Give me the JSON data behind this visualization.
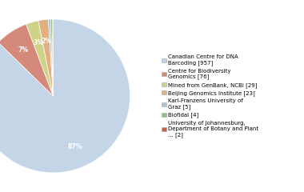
{
  "labels": [
    "Canadian Centre for DNA\nBarcoding [957]",
    "Centre for Biodiversity\nGenomics [76]",
    "Mined from GenBank, NCBI [29]",
    "Beijing Genomics Institute [23]",
    "Karl-Franzens University of\nGraz [5]",
    "Biofidal [4]",
    "University of Johannesburg,\nDepartment of Botany and Plant\n... [2]"
  ],
  "values": [
    957,
    76,
    29,
    23,
    5,
    4,
    2
  ],
  "colors": [
    "#c5d5e8",
    "#d4897a",
    "#cdd488",
    "#e0b080",
    "#a8c4d8",
    "#8fbc8f",
    "#c8604a"
  ],
  "startangle": 90,
  "background_color": "#ffffff",
  "pct_threshold": 1.5
}
